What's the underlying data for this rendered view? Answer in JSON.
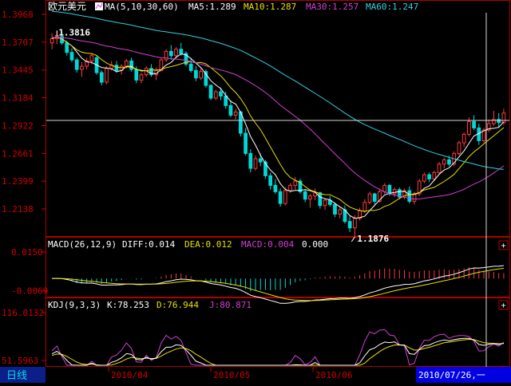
{
  "colors": {
    "background": "#000000",
    "frame": "#b00000",
    "axis_text": "#d00000",
    "up": "#ff3a3a",
    "down": "#00d8d8",
    "white": "#ffffff",
    "ma5": "#ffffff",
    "ma10": "#e8e000",
    "ma30": "#d040d0",
    "ma60": "#30d0e0",
    "macd_pos": "#ff3a3a",
    "macd_neg": "#00d8d8",
    "diff": "#ffffff",
    "dea": "#e8e000",
    "k": "#ffffff",
    "d": "#e8e000",
    "j": "#d040d0",
    "period_bg": "#0b1e8a",
    "cursor_bg": "#0000e0",
    "period_text": "#00e0e0"
  },
  "price_panel": {
    "symbol": "欧元美元",
    "indicator_icon": "ma-indicator-icon",
    "ma_params": "MA(5,10,30,60)",
    "ma5_label": "MA5:1.289",
    "ma10_label": "MA10:1.287",
    "ma30_label": "MA30:1.257",
    "ma60_label": "MA60:1.247",
    "yticks": [
      "1.3968",
      "1.3707",
      "1.3445",
      "1.3184",
      "1.2922",
      "1.2661",
      "1.2399",
      "1.2138"
    ],
    "high_label": "1.3816",
    "low_label": "1.1876"
  },
  "macd_panel": {
    "title": "MACD(26,12,9)",
    "diff_label": "DIFF:0.014",
    "dea_label": "DEA:0.012",
    "macd_label": "MACD:0.004",
    "zero_label": "0.000",
    "yticks": [
      "0.0150",
      "-0.0069"
    ],
    "expand_label": "+"
  },
  "kdj_panel": {
    "title": "KDJ(9,3,3)",
    "k_label": "K:78.253",
    "d_label": "D:76.944",
    "j_label": "J:80.871",
    "yticks": [
      "116.0132",
      "51.5963"
    ],
    "expand_label": "+"
  },
  "bottom_bar": {
    "period": "日线",
    "dates": [
      "2010/04",
      "2010/05",
      "2010/06"
    ],
    "cursor_date": "2010/07/26,一"
  },
  "chart_data": {
    "type": "candlestick",
    "series": [
      {
        "name": "K线",
        "ohlc": [
          [
            1.37,
            1.379,
            1.364,
            1.374
          ],
          [
            1.374,
            1.3816,
            1.369,
            1.377
          ],
          [
            1.376,
            1.38,
            1.368,
            1.37
          ],
          [
            1.37,
            1.372,
            1.358,
            1.361
          ],
          [
            1.361,
            1.365,
            1.352,
            1.354
          ],
          [
            1.354,
            1.356,
            1.342,
            1.345
          ],
          [
            1.345,
            1.352,
            1.338,
            1.348
          ],
          [
            1.348,
            1.356,
            1.345,
            1.353
          ],
          [
            1.353,
            1.36,
            1.35,
            1.358
          ],
          [
            1.356,
            1.358,
            1.34,
            1.342
          ],
          [
            1.342,
            1.344,
            1.33,
            1.333
          ],
          [
            1.333,
            1.348,
            1.331,
            1.346
          ],
          [
            1.346,
            1.353,
            1.344,
            1.349
          ],
          [
            1.349,
            1.353,
            1.342,
            1.344
          ],
          [
            1.344,
            1.35,
            1.34,
            1.348
          ],
          [
            1.348,
            1.355,
            1.346,
            1.353
          ],
          [
            1.353,
            1.356,
            1.343,
            1.345
          ],
          [
            1.345,
            1.348,
            1.332,
            1.335
          ],
          [
            1.335,
            1.342,
            1.332,
            1.34
          ],
          [
            1.34,
            1.348,
            1.338,
            1.346
          ],
          [
            1.346,
            1.35,
            1.338,
            1.34
          ],
          [
            1.34,
            1.347,
            1.335,
            1.344
          ],
          [
            1.344,
            1.356,
            1.343,
            1.354
          ],
          [
            1.354,
            1.364,
            1.352,
            1.362
          ],
          [
            1.362,
            1.368,
            1.354,
            1.358
          ],
          [
            1.358,
            1.366,
            1.356,
            1.364
          ],
          [
            1.364,
            1.37,
            1.358,
            1.36
          ],
          [
            1.36,
            1.362,
            1.348,
            1.35
          ],
          [
            1.35,
            1.356,
            1.342,
            1.344
          ],
          [
            1.344,
            1.348,
            1.334,
            1.337
          ],
          [
            1.337,
            1.346,
            1.335,
            1.343
          ],
          [
            1.343,
            1.345,
            1.328,
            1.33
          ],
          [
            1.33,
            1.331,
            1.316,
            1.318
          ],
          [
            1.318,
            1.326,
            1.316,
            1.324
          ],
          [
            1.324,
            1.328,
            1.316,
            1.32
          ],
          [
            1.32,
            1.324,
            1.308,
            1.311
          ],
          [
            1.311,
            1.316,
            1.3,
            1.302
          ],
          [
            1.302,
            1.308,
            1.298,
            1.305
          ],
          [
            1.305,
            1.306,
            1.282,
            1.285
          ],
          [
            1.285,
            1.29,
            1.264,
            1.266
          ],
          [
            1.266,
            1.27,
            1.248,
            1.252
          ],
          [
            1.252,
            1.264,
            1.25,
            1.261
          ],
          [
            1.261,
            1.266,
            1.254,
            1.258
          ],
          [
            1.258,
            1.26,
            1.242,
            1.245
          ],
          [
            1.245,
            1.248,
            1.232,
            1.236
          ],
          [
            1.236,
            1.242,
            1.228,
            1.23
          ],
          [
            1.23,
            1.233,
            1.216,
            1.219
          ],
          [
            1.219,
            1.234,
            1.217,
            1.231
          ],
          [
            1.231,
            1.238,
            1.229,
            1.236
          ],
          [
            1.236,
            1.244,
            1.232,
            1.24
          ],
          [
            1.24,
            1.242,
            1.228,
            1.23
          ],
          [
            1.23,
            1.232,
            1.22,
            1.223
          ],
          [
            1.223,
            1.228,
            1.215,
            1.226
          ],
          [
            1.226,
            1.233,
            1.222,
            1.229
          ],
          [
            1.229,
            1.23,
            1.214,
            1.217
          ],
          [
            1.217,
            1.224,
            1.213,
            1.222
          ],
          [
            1.222,
            1.226,
            1.216,
            1.218
          ],
          [
            1.218,
            1.22,
            1.206,
            1.209
          ],
          [
            1.209,
            1.216,
            1.205,
            1.213
          ],
          [
            1.213,
            1.217,
            1.2,
            1.202
          ],
          [
            1.202,
            1.207,
            1.192,
            1.196
          ],
          [
            1.196,
            1.208,
            1.1876,
            1.205
          ],
          [
            1.205,
            1.215,
            1.203,
            1.212
          ],
          [
            1.212,
            1.223,
            1.21,
            1.22
          ],
          [
            1.22,
            1.23,
            1.218,
            1.228
          ],
          [
            1.228,
            1.229,
            1.218,
            1.221
          ],
          [
            1.221,
            1.232,
            1.22,
            1.23
          ],
          [
            1.23,
            1.238,
            1.228,
            1.236
          ],
          [
            1.236,
            1.237,
            1.226,
            1.228
          ],
          [
            1.228,
            1.234,
            1.225,
            1.232
          ],
          [
            1.232,
            1.234,
            1.223,
            1.225
          ],
          [
            1.225,
            1.233,
            1.223,
            1.231
          ],
          [
            1.231,
            1.235,
            1.219,
            1.221
          ],
          [
            1.221,
            1.23,
            1.218,
            1.228
          ],
          [
            1.228,
            1.242,
            1.226,
            1.24
          ],
          [
            1.24,
            1.248,
            1.238,
            1.246
          ],
          [
            1.246,
            1.248,
            1.239,
            1.242
          ],
          [
            1.242,
            1.25,
            1.24,
            1.248
          ],
          [
            1.248,
            1.258,
            1.246,
            1.256
          ],
          [
            1.256,
            1.262,
            1.252,
            1.26
          ],
          [
            1.26,
            1.264,
            1.254,
            1.256
          ],
          [
            1.256,
            1.268,
            1.254,
            1.266
          ],
          [
            1.266,
            1.278,
            1.264,
            1.276
          ],
          [
            1.276,
            1.286,
            1.272,
            1.284
          ],
          [
            1.284,
            1.3,
            1.282,
            1.296
          ],
          [
            1.296,
            1.302,
            1.288,
            1.29
          ],
          [
            1.29,
            1.294,
            1.274,
            1.278
          ],
          [
            1.278,
            1.29,
            1.276,
            1.288
          ],
          [
            1.288,
            1.298,
            1.286,
            1.294
          ],
          [
            1.294,
            1.306,
            1.292,
            1.298
          ],
          [
            1.298,
            1.304,
            1.29,
            1.295
          ],
          [
            1.295,
            1.308,
            1.293,
            1.304
          ]
        ]
      },
      {
        "name": "MA5",
        "last": 1.289
      },
      {
        "name": "MA10",
        "last": 1.287
      },
      {
        "name": "MA30",
        "last": 1.257
      },
      {
        "name": "MA60",
        "last": 1.247
      }
    ],
    "ylim": [
      1.1876,
      1.3968
    ],
    "yticks": [
      1.3968,
      1.3707,
      1.3445,
      1.3184,
      1.2922,
      1.2661,
      1.2399,
      1.2138
    ],
    "x_labels": [
      "2010/04",
      "2010/05",
      "2010/06"
    ],
    "max_marker": 1.3816,
    "min_marker": 1.1876,
    "macd": {
      "diff": 0.014,
      "dea": 0.012,
      "macd": 0.004,
      "ylim": [
        -0.0069,
        0.015
      ]
    },
    "kdj": {
      "k": 78.253,
      "d": 76.944,
      "j": 80.871,
      "ylim": [
        51.5963,
        116.0132
      ]
    }
  }
}
